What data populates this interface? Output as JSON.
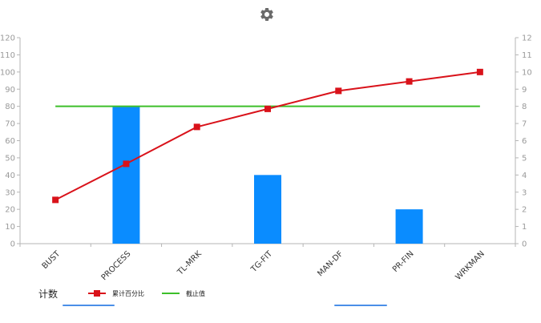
{
  "toolbar": {
    "settings_icon": "gear-icon"
  },
  "colors": {
    "bar": "#0a8cff",
    "cumulative_line": "#d9121a",
    "cutoff_line": "#3cbf2a",
    "axis": "#b5b5b5",
    "tick_text": "#9a9a9a",
    "category_text": "#333333",
    "gear": "#6b6b6b",
    "scrollbar": "#4a8fe8"
  },
  "legend": {
    "title": "计数",
    "cumulative_label": "累计百分比",
    "cutoff_label": "截止值"
  },
  "chart_data": {
    "type": "bar",
    "categories": [
      "BUST",
      "PROCESS",
      "TL-MRK",
      "TG-FIT",
      "MAN-DF",
      "PR-FIN",
      "WRKMAN"
    ],
    "series": [
      {
        "type": "bar",
        "axis": "right",
        "values": [
          0,
          8,
          0,
          4,
          0,
          2,
          0
        ]
      },
      {
        "type": "line",
        "axis": "left",
        "name": "累计百分比",
        "values": [
          25.5,
          46.5,
          68,
          78.5,
          89,
          94.5,
          100
        ]
      },
      {
        "type": "line",
        "axis": "left",
        "name": "截止值",
        "values": [
          80,
          80,
          80,
          80,
          80,
          80,
          80
        ]
      }
    ],
    "y_left": {
      "ticks": [
        "0",
        "10",
        "20",
        "30",
        "40",
        "50",
        "60",
        "70",
        "80",
        "90",
        "100",
        "110",
        "120"
      ],
      "ylim": [
        0,
        120
      ]
    },
    "y_right": {
      "ticks": [
        "0",
        "1",
        "2",
        "3",
        "4",
        "5",
        "6",
        "7",
        "8",
        "9",
        "10",
        "11",
        "12"
      ],
      "ylim": [
        0,
        12
      ]
    },
    "grid": false,
    "legend_position": "bottom-left"
  }
}
